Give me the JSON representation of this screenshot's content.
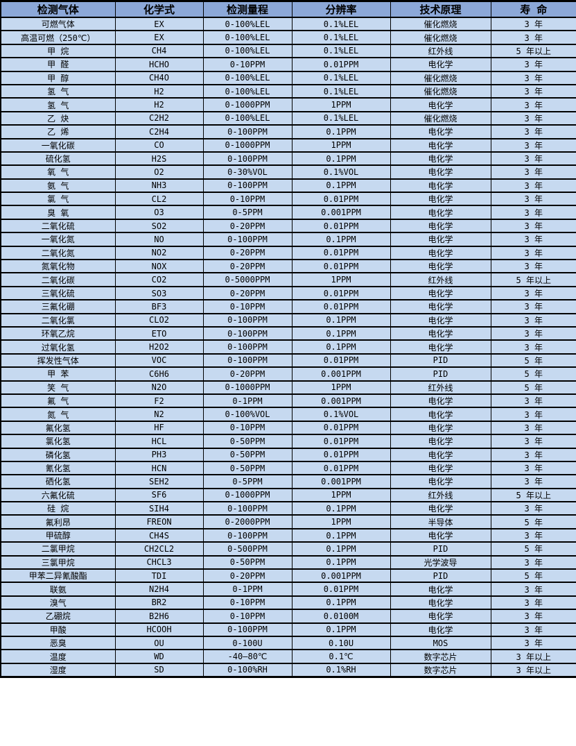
{
  "colors": {
    "header_bg": "#8ca8d8",
    "row_bg": "#c6d9f0",
    "border": "#000000",
    "text": "#000000"
  },
  "table": {
    "headers": [
      "检测气体",
      "化学式",
      "检测量程",
      "分辨率",
      "技术原理",
      "寿 命"
    ],
    "rows": [
      [
        "可燃气体",
        "EX",
        "0-100%LEL",
        "0.1%LEL",
        "催化燃烧",
        "3 年"
      ],
      [
        "高温可燃（250℃）",
        "EX",
        "0-100%LEL",
        "0.1%LEL",
        "催化燃烧",
        "3 年"
      ],
      [
        "甲 烷",
        "CH4",
        "0-100%LEL",
        "0.1%LEL",
        "红外线",
        "5 年以上"
      ],
      [
        "甲 醛",
        "HCHO",
        "0-10PPM",
        "0.01PPM",
        "电化学",
        "3 年"
      ],
      [
        "甲 醇",
        "CH4O",
        "0-100%LEL",
        "0.1%LEL",
        "催化燃烧",
        "3 年"
      ],
      [
        "氢 气",
        "H2",
        "0-100%LEL",
        "0.1%LEL",
        "催化燃烧",
        "3 年"
      ],
      [
        "氢 气",
        "H2",
        "0-1000PPM",
        "1PPM",
        "电化学",
        "3 年"
      ],
      [
        "乙 炔",
        "C2H2",
        "0-100%LEL",
        "0.1%LEL",
        "催化燃烧",
        "3 年"
      ],
      [
        "乙 烯",
        "C2H4",
        "0-100PPM",
        "0.1PPM",
        "电化学",
        "3 年"
      ],
      [
        "一氧化碳",
        "CO",
        "0-1000PPM",
        "1PPM",
        "电化学",
        "3 年"
      ],
      [
        "硫化氢",
        "H2S",
        "0-100PPM",
        "0.1PPM",
        "电化学",
        "3 年"
      ],
      [
        "氧 气",
        "O2",
        "0-30%VOL",
        "0.1%VOL",
        "电化学",
        "3 年"
      ],
      [
        "氨 气",
        "NH3",
        "0-100PPM",
        "0.1PPM",
        "电化学",
        "3 年"
      ],
      [
        "氯 气",
        "CL2",
        "0-10PPM",
        "0.01PPM",
        "电化学",
        "3 年"
      ],
      [
        "臭 氧",
        "O3",
        "0-5PPM",
        "0.001PPM",
        "电化学",
        "3 年"
      ],
      [
        "二氧化硫",
        "SO2",
        "0-20PPM",
        "0.01PPM",
        "电化学",
        "3 年"
      ],
      [
        "一氧化氮",
        "NO",
        "0-100PPM",
        "0.1PPM",
        "电化学",
        "3 年"
      ],
      [
        "二氧化氮",
        "NO2",
        "0-20PPM",
        "0.01PPM",
        "电化学",
        "3 年"
      ],
      [
        "氮氧化物",
        "NOX",
        "0-20PPM",
        "0.01PPM",
        "电化学",
        "3 年"
      ],
      [
        "二氧化碳",
        "CO2",
        "0-5000PPM",
        "1PPM",
        "红外线",
        "5 年以上"
      ],
      [
        "三氧化硫",
        "SO3",
        "0-20PPM",
        "0.01PPM",
        "电化学",
        "3 年"
      ],
      [
        "三氟化硼",
        "BF3",
        "0-10PPM",
        "0.01PPM",
        "电化学",
        "3 年"
      ],
      [
        "二氧化氯",
        "CLO2",
        "0-100PPM",
        "0.1PPM",
        "电化学",
        "3 年"
      ],
      [
        "环氧乙烷",
        "ETO",
        "0-100PPM",
        "0.1PPM",
        "电化学",
        "3 年"
      ],
      [
        "过氧化氢",
        "H2O2",
        "0-100PPM",
        "0.1PPM",
        "电化学",
        "3 年"
      ],
      [
        "挥发性气体",
        "VOC",
        "0-100PPM",
        "0.01PPM",
        "PID",
        "5 年"
      ],
      [
        "甲 苯",
        "C6H6",
        "0-20PPM",
        "0.001PPM",
        "PID",
        "5 年"
      ],
      [
        "笑 气",
        "N2O",
        "0-1000PPM",
        "1PPM",
        "红外线",
        "5 年"
      ],
      [
        "氟 气",
        "F2",
        "0-1PPM",
        "0.001PPM",
        "电化学",
        "3 年"
      ],
      [
        "氮 气",
        "N2",
        "0-100%VOL",
        "0.1%VOL",
        "电化学",
        "3 年"
      ],
      [
        "氟化氢",
        "HF",
        "0-10PPM",
        "0.01PPM",
        "电化学",
        "3 年"
      ],
      [
        "氯化氢",
        "HCL",
        "0-50PPM",
        "0.01PPM",
        "电化学",
        "3 年"
      ],
      [
        "磷化氢",
        "PH3",
        "0-50PPM",
        "0.01PPM",
        "电化学",
        "3 年"
      ],
      [
        "氰化氢",
        "HCN",
        "0-50PPM",
        "0.01PPM",
        "电化学",
        "3 年"
      ],
      [
        "硒化氢",
        "SEH2",
        "0-5PPM",
        "0.001PPM",
        "电化学",
        "3 年"
      ],
      [
        "六氟化硫",
        "SF6",
        "0-1000PPM",
        "1PPM",
        "红外线",
        "5 年以上"
      ],
      [
        "硅 烷",
        "SIH4",
        "0-100PPM",
        "0.1PPM",
        "电化学",
        "3 年"
      ],
      [
        "氟利昂",
        "FREON",
        "0-2000PPM",
        "1PPM",
        "半导体",
        "5 年"
      ],
      [
        "甲硫醇",
        "CH4S",
        "0-100PPM",
        "0.1PPM",
        "电化学",
        "3 年"
      ],
      [
        "二氯甲烷",
        "CH2CL2",
        "0-500PPM",
        "0.1PPM",
        "PID",
        "5 年"
      ],
      [
        "三氯甲烷",
        "CHCL3",
        "0-50PPM",
        "0.1PPM",
        "光学波导",
        "3 年"
      ],
      [
        "甲苯二异氰酸酯",
        "TDI",
        "0-20PPM",
        "0.001PPM",
        "PID",
        "5 年"
      ],
      [
        "联氨",
        "N2H4",
        "0-1PPM",
        "0.01PPM",
        "电化学",
        "3 年"
      ],
      [
        "溴气",
        "BR2",
        "0-10PPM",
        "0.1PPM",
        "电化学",
        "3 年"
      ],
      [
        "乙硼烷",
        "B2H6",
        "0-10PPM",
        "0.0100M",
        "电化学",
        "3 年"
      ],
      [
        "甲酸",
        "HCOOH",
        "0-100PPM",
        "0.1PPM",
        "电化学",
        "3 年"
      ],
      [
        "恶臭",
        "OU",
        "0-100U",
        "0.10U",
        "MOS",
        "3 年"
      ],
      [
        "温度",
        "WD",
        "-40—80℃",
        "0.1℃",
        "数字芯片",
        "3 年以上"
      ],
      [
        "湿度",
        "SD",
        "0-100%RH",
        "0.1%RH",
        "数字芯片",
        "3 年以上"
      ]
    ]
  }
}
